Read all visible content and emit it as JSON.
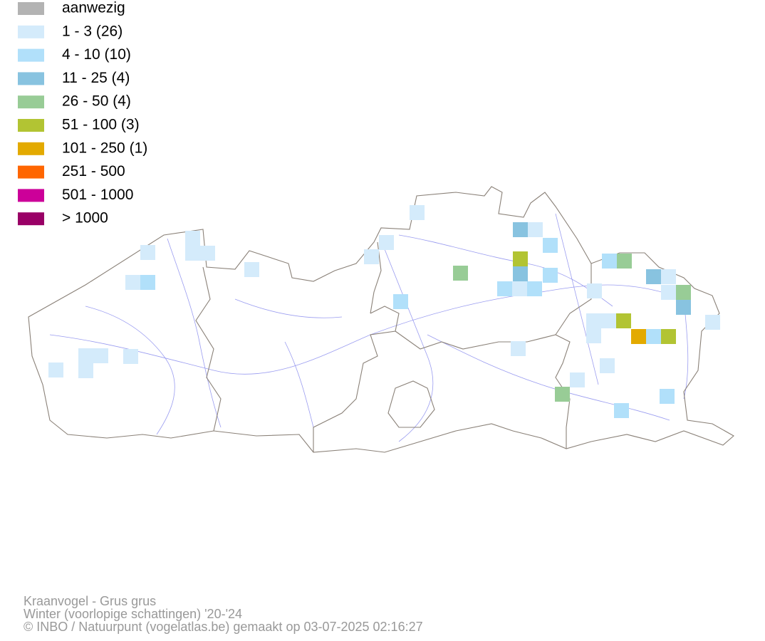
{
  "legend": {
    "items": [
      {
        "label": "aanwezig",
        "color": "#b3b3b3"
      },
      {
        "label": "1 - 3 (26)",
        "color": "#d4ebfb"
      },
      {
        "label": "4 - 10 (10)",
        "color": "#b1e0fa"
      },
      {
        "label": "11 - 25 (4)",
        "color": "#88c3e0"
      },
      {
        "label": "26 - 50 (4)",
        "color": "#98cc96"
      },
      {
        "label": "51 - 100 (3)",
        "color": "#b2c433"
      },
      {
        "label": "101 - 250 (1)",
        "color": "#e3aa00"
      },
      {
        "label": "251 - 500",
        "color": "#ff6600"
      },
      {
        "label": "501 - 1000",
        "color": "#cc0099"
      },
      {
        "label": "> 1000",
        "color": "#990066"
      }
    ]
  },
  "footer": {
    "lines": [
      "Kraanvogel - Grus grus",
      "Winter (voorlopige schattingen) '20-'24",
      "© INBO / Natuurpunt (vogelatlas.be) gemaakt op 03-07-2025 02:16:27"
    ]
  }
}
